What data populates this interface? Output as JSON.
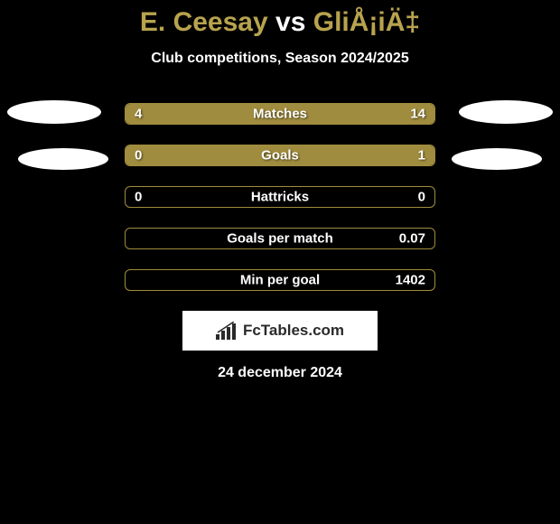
{
  "title": {
    "player1": "E. Ceesay",
    "vs": "vs",
    "player2": "GliÅ¡iÄ‡"
  },
  "subtitle": "Club competitions, Season 2024/2025",
  "stats": [
    {
      "label": "Matches",
      "left_value": "4",
      "right_value": "14",
      "left_pct": 22,
      "right_pct": 78,
      "bar_color": "#a08c3e"
    },
    {
      "label": "Goals",
      "left_value": "0",
      "right_value": "1",
      "left_pct": 0,
      "right_pct": 100,
      "bar_color": "#a08c3e"
    },
    {
      "label": "Hattricks",
      "left_value": "0",
      "right_value": "0",
      "left_pct": 0,
      "right_pct": 0,
      "bar_color": "#a08c3e"
    },
    {
      "label": "Goals per match",
      "left_value": "",
      "right_value": "0.07",
      "left_pct": 0,
      "right_pct": 0,
      "bar_color": "#a08c3e"
    },
    {
      "label": "Min per goal",
      "left_value": "",
      "right_value": "1402",
      "left_pct": 0,
      "right_pct": 0,
      "bar_color": "#a08c3e"
    }
  ],
  "logo": {
    "text": "FcTables.com",
    "icon_color": "#2a2a2a"
  },
  "date": "24 december 2024",
  "colors": {
    "background": "#000000",
    "accent": "#b8a34e",
    "bar": "#a08c3e",
    "text": "#ffffff",
    "ellipse": "#ffffff"
  }
}
